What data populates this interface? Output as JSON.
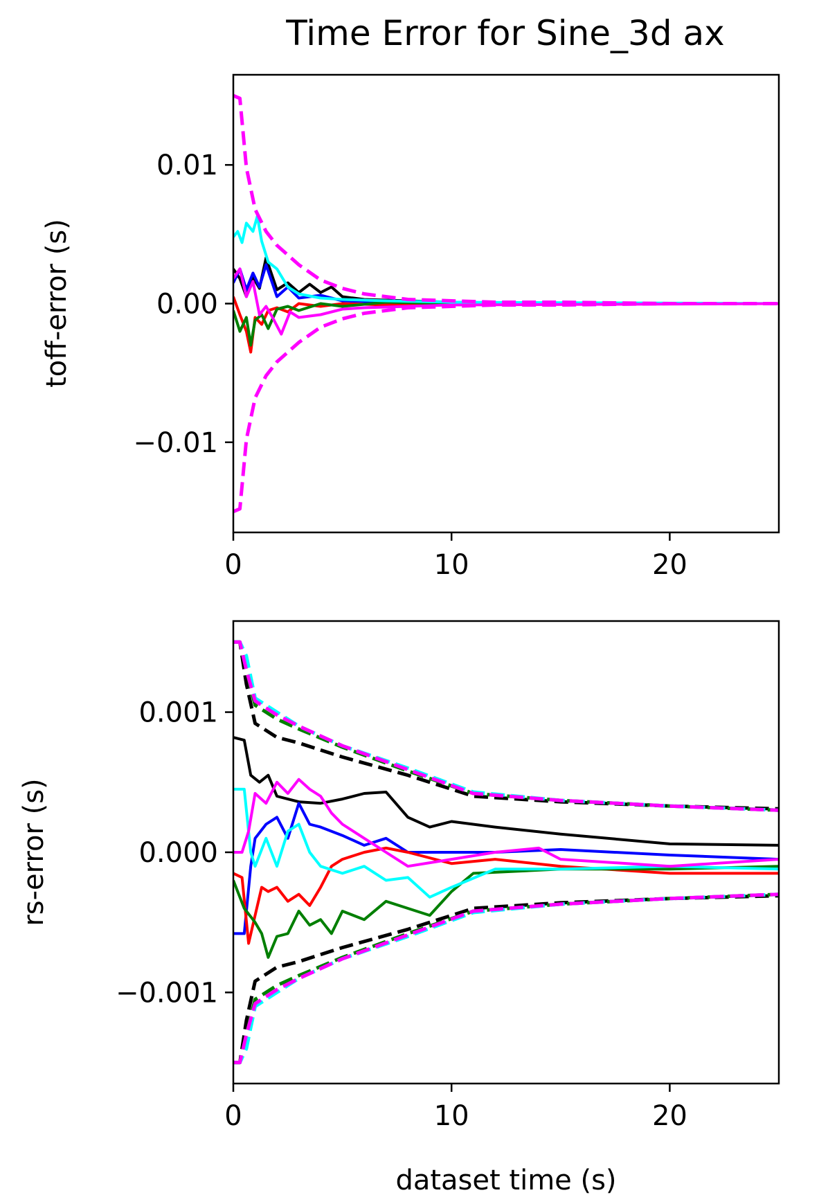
{
  "title": "Time Error for Sine_3d ax",
  "colors": {
    "black": "#000000",
    "blue": "#0000ff",
    "red": "#ff0000",
    "green": "#007f00",
    "cyan": "#00ffff",
    "magenta": "#ff00ff"
  },
  "chart_data": [
    {
      "type": "line",
      "title": "Time Error for Sine_3d ax",
      "xlabel": "",
      "ylabel": "toff-error (s)",
      "xlim": [
        0,
        25
      ],
      "ylim": [
        -0.0165,
        0.0165
      ],
      "xticks": [
        0,
        10,
        20
      ],
      "xtick_labels": [
        "0",
        "10",
        "20"
      ],
      "yticks": [
        0.01,
        0.0,
        -0.01
      ],
      "ytick_labels": [
        "0.01",
        "0.00",
        "−0.01"
      ],
      "grid": false,
      "series": [
        {
          "color": "black",
          "style": "solid",
          "x": [
            0,
            0.3,
            0.6,
            0.9,
            1.2,
            1.5,
            2,
            2.5,
            3,
            3.5,
            4,
            4.5,
            5,
            6,
            8,
            10,
            15,
            25
          ],
          "y": [
            0.0025,
            0.0018,
            0.0005,
            0.0019,
            0.0011,
            0.0033,
            0.001,
            0.0015,
            0.0008,
            0.0014,
            0.0008,
            0.0012,
            0.0005,
            0.0003,
            0.0002,
            0.0001,
            0.0,
            0.0
          ]
        },
        {
          "color": "blue",
          "style": "solid",
          "x": [
            0,
            0.3,
            0.6,
            0.9,
            1.2,
            1.5,
            2,
            2.5,
            3,
            4,
            5,
            7,
            10,
            25
          ],
          "y": [
            0.0015,
            0.0025,
            0.001,
            0.0022,
            0.0012,
            0.0028,
            0.0005,
            0.0012,
            0.0004,
            0.0006,
            0.0002,
            0.0001,
            0.0,
            0.0
          ]
        },
        {
          "color": "red",
          "style": "solid",
          "x": [
            0,
            0.3,
            0.6,
            0.8,
            1.0,
            1.3,
            1.6,
            2,
            2.5,
            3,
            4,
            5,
            7,
            10,
            25
          ],
          "y": [
            0.0005,
            -0.0008,
            -0.002,
            -0.0035,
            -0.001,
            -0.0015,
            -0.0005,
            -0.0003,
            -0.0006,
            0.0,
            -0.0002,
            0.0,
            -0.0001,
            0.0,
            0.0
          ]
        },
        {
          "color": "green",
          "style": "solid",
          "x": [
            0,
            0.3,
            0.6,
            0.8,
            1.0,
            1.3,
            1.6,
            2,
            2.5,
            3,
            4,
            5,
            7,
            10,
            25
          ],
          "y": [
            -0.0005,
            -0.002,
            -0.001,
            -0.003,
            -0.0012,
            -0.0008,
            -0.0018,
            -0.0004,
            -0.0002,
            -0.0005,
            0.0,
            -0.0002,
            0.0001,
            0.0,
            0.0
          ]
        },
        {
          "color": "cyan",
          "style": "solid",
          "x": [
            0,
            0.2,
            0.4,
            0.6,
            0.9,
            1.1,
            1.3,
            1.6,
            2,
            2.5,
            3,
            4,
            5,
            7,
            10,
            25
          ],
          "y": [
            0.0048,
            0.0052,
            0.0044,
            0.0058,
            0.0052,
            0.0063,
            0.0045,
            0.003,
            0.0025,
            0.0012,
            0.0007,
            0.0004,
            0.0003,
            0.0002,
            0.0001,
            0.0
          ]
        },
        {
          "color": "magenta",
          "style": "solid",
          "x": [
            0,
            0.3,
            0.6,
            0.9,
            1.2,
            1.5,
            1.8,
            2.2,
            2.6,
            3,
            4,
            5,
            6,
            8,
            10,
            25
          ],
          "y": [
            0.0018,
            0.0025,
            0.0005,
            0.0016,
            -0.0008,
            -0.0002,
            -0.001,
            -0.0022,
            -0.0006,
            -0.001,
            -0.0008,
            -0.0004,
            -0.0003,
            -0.0002,
            -0.0001,
            0.0
          ]
        },
        {
          "color": "magenta",
          "style": "dashed",
          "x": [
            0,
            0.3,
            0.6,
            1.0,
            1.5,
            2,
            3,
            4,
            5,
            6,
            7,
            8,
            10,
            12,
            15,
            20,
            25
          ],
          "y": [
            0.015,
            0.0148,
            0.0098,
            0.0068,
            0.0052,
            0.0042,
            0.0028,
            0.0017,
            0.0011,
            0.0007,
            0.0005,
            0.0003,
            0.0002,
            0.0001,
            0.0001,
            0.0,
            0.0
          ]
        },
        {
          "color": "magenta",
          "style": "dashed",
          "x": [
            0,
            0.3,
            0.6,
            1.0,
            1.5,
            2,
            3,
            4,
            5,
            6,
            7,
            8,
            10,
            12,
            15,
            20,
            25
          ],
          "y": [
            -0.015,
            -0.0148,
            -0.0098,
            -0.0068,
            -0.0052,
            -0.0042,
            -0.0028,
            -0.0017,
            -0.0011,
            -0.0007,
            -0.0005,
            -0.0003,
            -0.0002,
            -0.0001,
            -0.0001,
            0.0,
            0.0
          ]
        }
      ]
    },
    {
      "type": "line",
      "title": "",
      "xlabel": "dataset time (s)",
      "ylabel": "rs-error (s)",
      "xlim": [
        0,
        25
      ],
      "ylim": [
        -0.00165,
        0.00165
      ],
      "xticks": [
        0,
        10,
        20
      ],
      "xtick_labels": [
        "0",
        "10",
        "20"
      ],
      "yticks": [
        0.001,
        0.0,
        -0.001
      ],
      "ytick_labels": [
        "0.001",
        "0.000",
        "−0.001"
      ],
      "grid": false,
      "series": [
        {
          "color": "black",
          "style": "solid",
          "x": [
            0,
            0.5,
            0.8,
            1.2,
            1.6,
            2,
            2.5,
            3,
            4,
            5,
            6,
            7,
            8,
            9,
            10,
            12,
            15,
            20,
            25
          ],
          "y": [
            0.00082,
            0.0008,
            0.00055,
            0.0005,
            0.00055,
            0.0004,
            0.00038,
            0.00036,
            0.00035,
            0.00038,
            0.00042,
            0.00043,
            0.00025,
            0.00018,
            0.00022,
            0.00018,
            0.00013,
            6e-05,
            5e-05
          ]
        },
        {
          "color": "blue",
          "style": "solid",
          "x": [
            0,
            0.5,
            0.8,
            1.0,
            1.5,
            2,
            2.5,
            3,
            3.5,
            4,
            5,
            6,
            7,
            8,
            10,
            12,
            15,
            20,
            25
          ],
          "y": [
            -0.00058,
            -0.00058,
            -0.0001,
            0.0001,
            0.0002,
            0.00025,
            0.0001,
            0.00035,
            0.0002,
            0.00018,
            0.00012,
            5e-05,
            0.0001,
            0.0,
            0.0,
            0.0,
            2e-05,
            -2e-05,
            -5e-05
          ]
        },
        {
          "color": "red",
          "style": "solid",
          "x": [
            0,
            0.4,
            0.7,
            1.0,
            1.3,
            1.6,
            2,
            2.5,
            3,
            3.5,
            4,
            4.5,
            5,
            6,
            7,
            8,
            10,
            12,
            15,
            20,
            25
          ],
          "y": [
            -0.00015,
            -0.00018,
            -0.00065,
            -0.00045,
            -0.00025,
            -0.00028,
            -0.00025,
            -0.00035,
            -0.0003,
            -0.00038,
            -0.00025,
            -0.0001,
            -5e-05,
            0.0,
            3e-05,
            0.0,
            -8e-05,
            -5e-05,
            -0.0001,
            -0.00015,
            -0.00015
          ]
        },
        {
          "color": "green",
          "style": "solid",
          "x": [
            0,
            0.5,
            1.0,
            1.3,
            1.6,
            2,
            2.5,
            3,
            3.5,
            4,
            4.5,
            5,
            6,
            7,
            8,
            9,
            10,
            11,
            15,
            20,
            25
          ],
          "y": [
            -0.0002,
            -0.0004,
            -0.0005,
            -0.00058,
            -0.00075,
            -0.0006,
            -0.00058,
            -0.00042,
            -0.00052,
            -0.00048,
            -0.00058,
            -0.00042,
            -0.00048,
            -0.00035,
            -0.0004,
            -0.00045,
            -0.00028,
            -0.00015,
            -0.00012,
            -0.00012,
            -0.0001
          ]
        },
        {
          "color": "cyan",
          "style": "solid",
          "x": [
            0,
            0.5,
            0.8,
            1.0,
            1.5,
            2,
            2.5,
            3,
            3.5,
            4,
            5,
            6,
            7,
            8,
            9,
            10,
            12,
            15,
            20,
            25
          ],
          "y": [
            0.00045,
            0.00045,
            0.0,
            -0.0001,
            0.0001,
            -0.0001,
            0.00015,
            0.0002,
            0.0,
            -0.0001,
            -0.00015,
            -0.0001,
            -0.0002,
            -0.00018,
            -0.00032,
            -0.00025,
            -0.00012,
            -0.00012,
            -0.0001,
            -0.00012
          ]
        },
        {
          "color": "magenta",
          "style": "solid",
          "x": [
            0,
            0.4,
            0.7,
            1.0,
            1.5,
            2,
            2.5,
            3,
            3.5,
            4,
            4.5,
            5,
            6,
            7,
            8,
            10,
            12,
            14,
            15,
            20,
            25
          ],
          "y": [
            0.0,
            0.0,
            0.00015,
            0.00042,
            0.00035,
            0.0005,
            0.00042,
            0.00052,
            0.00045,
            0.0004,
            0.00028,
            0.0002,
            0.0001,
            0.0,
            -0.0001,
            -5e-05,
            0.0,
            3e-05,
            -5e-05,
            -0.0001,
            -5e-05
          ]
        },
        {
          "color": "black",
          "style": "dashed",
          "x": [
            0,
            0.3,
            0.6,
            1.0,
            2,
            3,
            5,
            8,
            11,
            15,
            20,
            25
          ],
          "y": [
            0.0015,
            0.0015,
            0.0012,
            0.00092,
            0.00082,
            0.00078,
            0.00068,
            0.00055,
            0.0004,
            0.00036,
            0.00033,
            0.00031
          ]
        },
        {
          "color": "black",
          "style": "dashed",
          "x": [
            0,
            0.3,
            0.6,
            1.0,
            2,
            3,
            5,
            8,
            11,
            15,
            20,
            25
          ],
          "y": [
            -0.0015,
            -0.0015,
            -0.0012,
            -0.00092,
            -0.00082,
            -0.00078,
            -0.00068,
            -0.00055,
            -0.0004,
            -0.00036,
            -0.00033,
            -0.00031
          ]
        },
        {
          "color": "green",
          "style": "dashed",
          "x": [
            0,
            0.3,
            0.6,
            1.0,
            2,
            3,
            5,
            8,
            11,
            15,
            20,
            25
          ],
          "y": [
            0.0015,
            0.0015,
            0.0013,
            0.00105,
            0.00095,
            0.00088,
            0.00075,
            0.00058,
            0.00042,
            0.00037,
            0.00033,
            0.0003
          ]
        },
        {
          "color": "green",
          "style": "dashed",
          "x": [
            0,
            0.3,
            0.6,
            1.0,
            2,
            3,
            5,
            8,
            11,
            15,
            20,
            25
          ],
          "y": [
            -0.0015,
            -0.0015,
            -0.0013,
            -0.00105,
            -0.00095,
            -0.00088,
            -0.00075,
            -0.00058,
            -0.00042,
            -0.00037,
            -0.00033,
            -0.0003
          ]
        },
        {
          "color": "cyan",
          "style": "dashed",
          "x": [
            0,
            0.3,
            0.6,
            1.0,
            2,
            3,
            5,
            8,
            11,
            15,
            20,
            25
          ],
          "y": [
            0.0015,
            0.0015,
            0.0014,
            0.0011,
            0.001,
            0.0009,
            0.00076,
            0.0006,
            0.00043,
            0.00037,
            0.00033,
            0.0003
          ]
        },
        {
          "color": "cyan",
          "style": "dashed",
          "x": [
            0,
            0.3,
            0.6,
            1.0,
            2,
            3,
            5,
            8,
            11,
            15,
            20,
            25
          ],
          "y": [
            -0.0015,
            -0.0015,
            -0.0014,
            -0.0011,
            -0.001,
            -0.0009,
            -0.00076,
            -0.0006,
            -0.00043,
            -0.00037,
            -0.00033,
            -0.0003
          ]
        },
        {
          "color": "magenta",
          "style": "dashed",
          "x": [
            0,
            0.3,
            0.6,
            1.0,
            2,
            3,
            5,
            8,
            11,
            15,
            20,
            25
          ],
          "y": [
            0.0015,
            0.0015,
            0.0013,
            0.00108,
            0.00098,
            0.0009,
            0.00076,
            0.00059,
            0.00042,
            0.00037,
            0.00033,
            0.0003
          ]
        },
        {
          "color": "magenta",
          "style": "dashed",
          "x": [
            0,
            0.3,
            0.6,
            1.0,
            2,
            3,
            5,
            8,
            11,
            15,
            20,
            25
          ],
          "y": [
            -0.0015,
            -0.0015,
            -0.0013,
            -0.00108,
            -0.00098,
            -0.0009,
            -0.00076,
            -0.00059,
            -0.00042,
            -0.00037,
            -0.00033,
            -0.0003
          ]
        }
      ]
    }
  ]
}
